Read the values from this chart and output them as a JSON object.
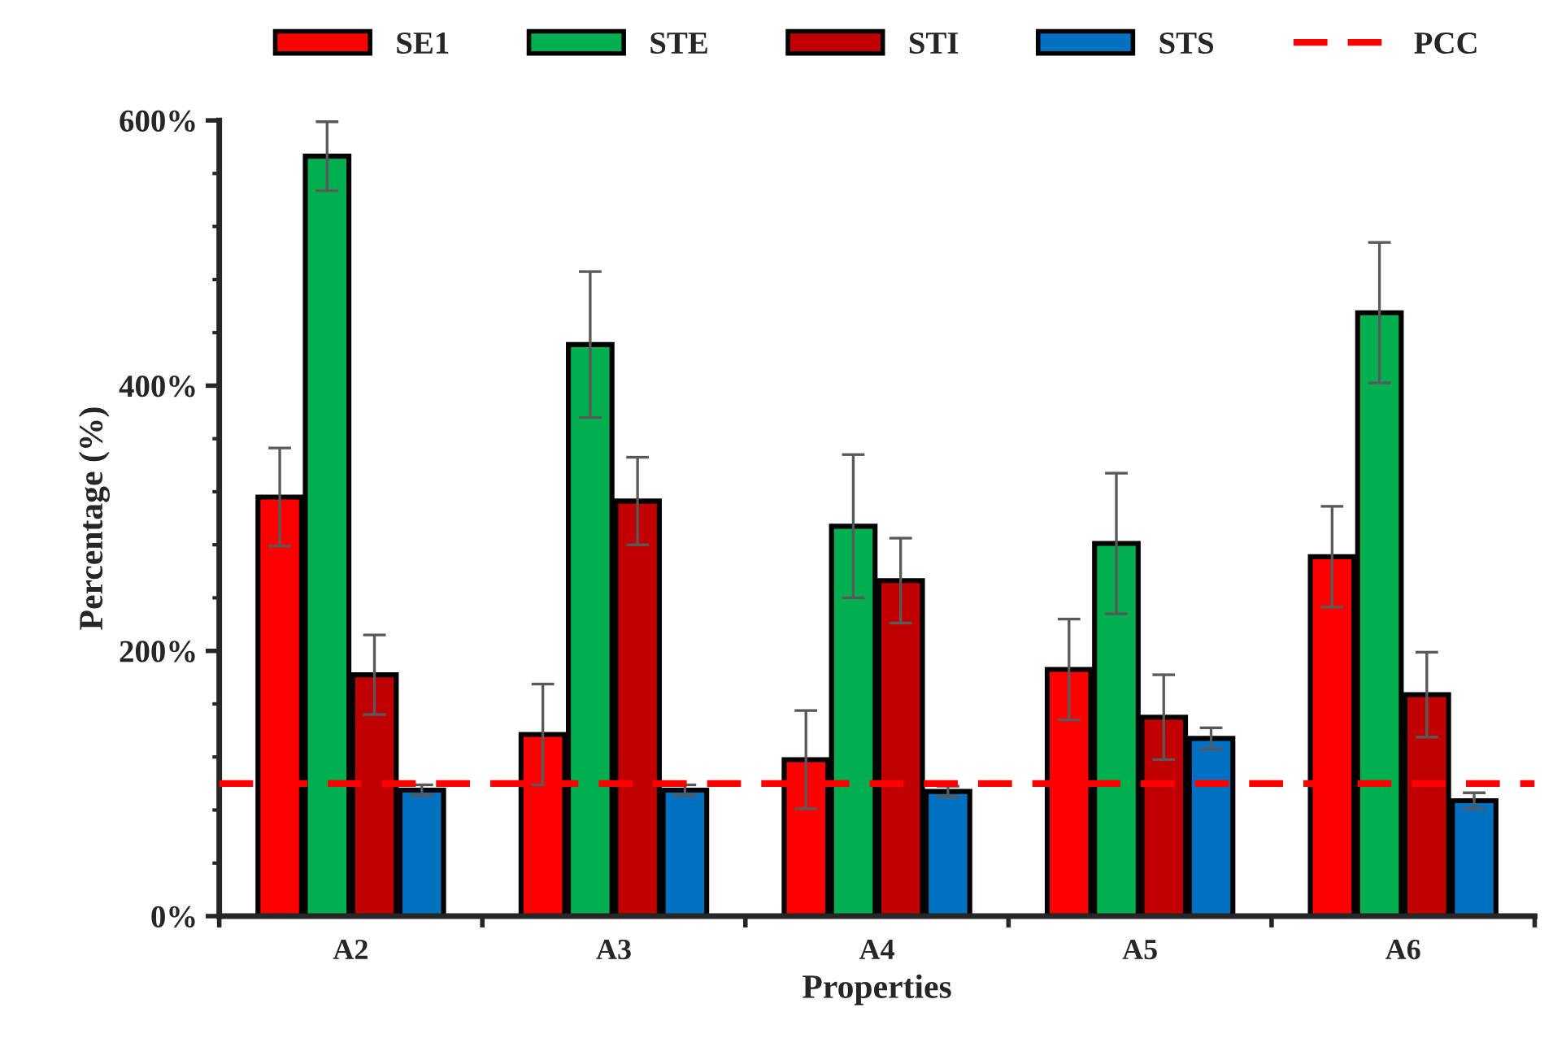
{
  "chart_data": {
    "type": "bar",
    "xlabel": "Properties",
    "ylabel": "Percentage (%)",
    "categories": [
      "A2",
      "A3",
      "A4",
      "A5",
      "A6"
    ],
    "series": [
      {
        "name": "SE1",
        "color": "#ff0000",
        "values": [
          316,
          137,
          118,
          186,
          271
        ],
        "errors": [
          37,
          38,
          37,
          38,
          38
        ]
      },
      {
        "name": "STE",
        "color": "#00b050",
        "values": [
          573,
          431,
          294,
          281,
          455
        ],
        "errors": [
          26,
          55,
          54,
          53,
          53
        ]
      },
      {
        "name": "STI",
        "color": "#c00000",
        "values": [
          182,
          313,
          253,
          150,
          167
        ],
        "errors": [
          30,
          33,
          32,
          32,
          32
        ]
      },
      {
        "name": "STS",
        "color": "#0070c0",
        "values": [
          95,
          95,
          94,
          134,
          87
        ],
        "errors": [
          4,
          4,
          4,
          8,
          6
        ]
      }
    ],
    "ylim": [
      0,
      600
    ],
    "yticks": [
      {
        "value": 0,
        "label": "0%"
      },
      {
        "value": 200,
        "label": "200%"
      },
      {
        "value": 400,
        "label": "400%"
      },
      {
        "value": 600,
        "label": "600%"
      }
    ],
    "ref_lines": [
      {
        "axis": "y",
        "value": 100,
        "label": "PCC",
        "color": "#ff0000",
        "line_style": "dashed"
      }
    ],
    "grid": false,
    "legend": "top"
  }
}
